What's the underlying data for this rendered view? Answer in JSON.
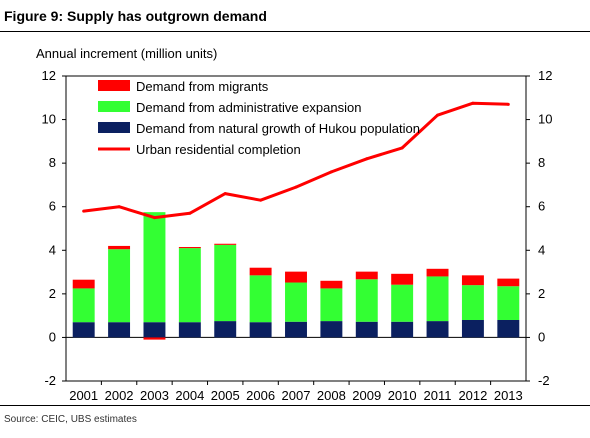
{
  "figure_title": "Figure 9: Supply has outgrown demand",
  "source": "Source: CEIC, UBS estimates",
  "chart_data": {
    "type": "bar",
    "stacked": true,
    "ylabel": "Annual increment (million units)",
    "ylim": [
      -2,
      12
    ],
    "yticks": [
      "-2",
      "0",
      "2",
      "4",
      "6",
      "8",
      "10",
      "12"
    ],
    "secondary_yticks": [
      "-2",
      "0",
      "2",
      "4",
      "6",
      "8",
      "10",
      "12"
    ],
    "grid": false,
    "legend_position": "top-left",
    "categories": [
      "2001",
      "2002",
      "2003",
      "2004",
      "2005",
      "2006",
      "2007",
      "2008",
      "2009",
      "2010",
      "2011",
      "2012",
      "2013"
    ],
    "series": [
      {
        "name": "Demand from natural growth of Hukou population",
        "kind": "bar",
        "color": "#0b2060",
        "values": [
          0.7,
          0.7,
          0.7,
          0.7,
          0.75,
          0.7,
          0.72,
          0.75,
          0.72,
          0.72,
          0.75,
          0.8,
          0.8
        ]
      },
      {
        "name": "Demand from administrative expansion",
        "kind": "bar",
        "color": "#33ff33",
        "values": [
          1.55,
          3.35,
          5.05,
          3.4,
          3.5,
          2.15,
          1.8,
          1.5,
          1.95,
          1.7,
          2.05,
          1.6,
          1.55
        ]
      },
      {
        "name": "Demand from migrants",
        "kind": "bar",
        "color": "#ff0000",
        "values": [
          0.4,
          0.15,
          -0.1,
          0.05,
          0.05,
          0.35,
          0.5,
          0.35,
          0.35,
          0.5,
          0.35,
          0.45,
          0.35
        ]
      },
      {
        "name": "Urban residential completion",
        "kind": "line",
        "color": "#ff0000",
        "values": [
          5.8,
          6.0,
          5.5,
          5.7,
          6.6,
          6.3,
          6.9,
          7.6,
          8.2,
          8.7,
          10.2,
          10.75,
          10.7
        ]
      }
    ],
    "legend_order": [
      "Demand from migrants",
      "Demand from administrative expansion",
      "Demand from natural growth of Hukou population",
      "Urban residential completion"
    ]
  }
}
